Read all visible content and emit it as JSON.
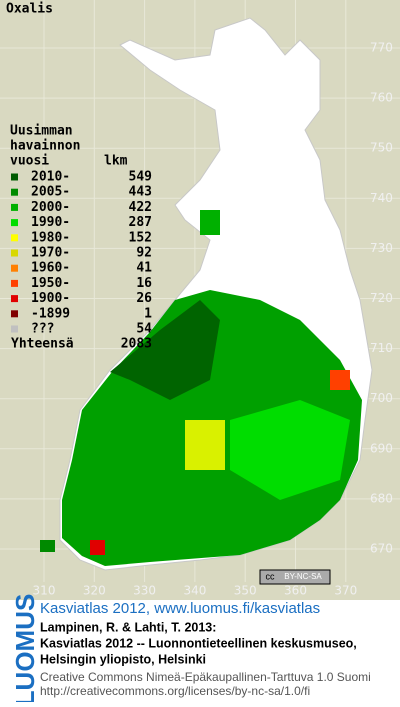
{
  "title": "Oxalis",
  "legend": {
    "heading": [
      "Uusimman",
      "havainnon",
      "vuosi"
    ],
    "count_heading": "lkm",
    "rows": [
      {
        "label": "2010-",
        "count": 549,
        "color": "#005a00"
      },
      {
        "label": "2005-",
        "count": 443,
        "color": "#008a00"
      },
      {
        "label": "2000-",
        "count": 422,
        "color": "#00b000"
      },
      {
        "label": "1990-",
        "count": 287,
        "color": "#00dd00"
      },
      {
        "label": "1980-",
        "count": 152,
        "color": "#ffff00"
      },
      {
        "label": "1970-",
        "count": 92,
        "color": "#d8d800"
      },
      {
        "label": "1960-",
        "count": 41,
        "color": "#ff8000"
      },
      {
        "label": "1950-",
        "count": 16,
        "color": "#ff4000"
      },
      {
        "label": "1900-",
        "count": 26,
        "color": "#e00000"
      },
      {
        "label": "-1899",
        "count": 1,
        "color": "#800000"
      },
      {
        "label": "???",
        "count": 54,
        "color": "#c0c0c0"
      }
    ],
    "total_label": "Yhteensä",
    "total": 2083
  },
  "grid": {
    "yticks": [
      770,
      760,
      750,
      740,
      730,
      720,
      710,
      700,
      690,
      680,
      670
    ],
    "xticks": [
      310,
      320,
      330,
      340,
      350,
      360,
      370
    ]
  },
  "license_badge": {
    "cc": "cc",
    "text": "BY-NC-SA"
  },
  "credits": {
    "brand": "LUOMUS",
    "link": "Kasviatlas 2012, www.luomus.fi/kasviatlas",
    "citation": [
      "Lampinen, R. & Lahti, T. 2013:",
      "Kasviatlas 2012 -- Luonnontieteellinen keskusmuseo,",
      "Helsingin yliopisto, Helsinki"
    ],
    "license": [
      "Creative Commons Nimeä-Epäkaupallinen-Tarttuva 1.0 Suomi",
      "http://creativecommons.org/licenses/by-nc-sa/1.0/fi"
    ]
  }
}
